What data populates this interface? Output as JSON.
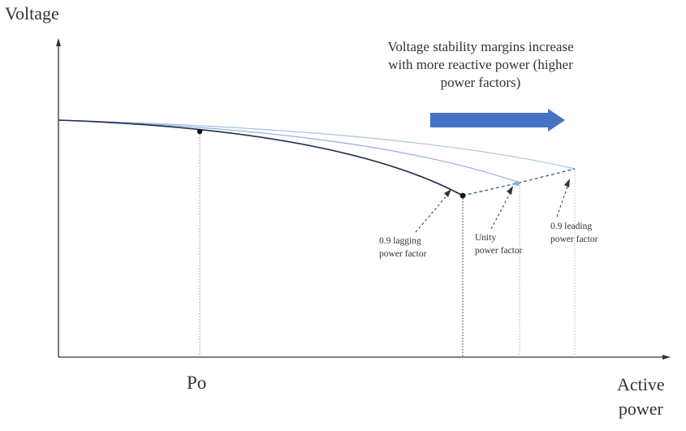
{
  "axes": {
    "y_label": "Voltage",
    "x_label_line1": "Active",
    "x_label_line2": "power",
    "x_marker": "Po"
  },
  "annotation": {
    "line1": "Voltage stability margins increase",
    "line2": "with more reactive power (higher",
    "line3": "power factors)"
  },
  "curves": [
    {
      "line1": "0.9 lagging",
      "line2": "power factor",
      "color": "#1c2d4f"
    },
    {
      "line1": "Unity",
      "line2": "power factor",
      "color": "#8faed8"
    },
    {
      "line1": "0.9 leading",
      "line2": "power factor",
      "color": "#a9c1e2"
    }
  ],
  "colors": {
    "arrow": "#4472c4",
    "guide": "#6f8fbf",
    "axis": "#333333"
  }
}
